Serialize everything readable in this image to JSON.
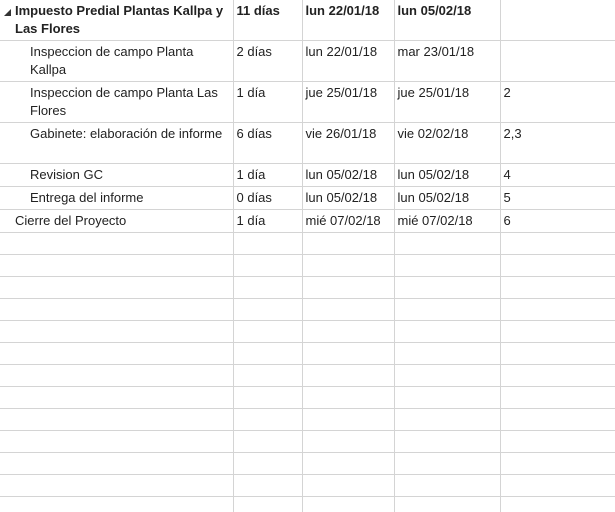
{
  "gantt_table": {
    "rows": [
      {
        "name": "Impuesto Predial Plantas Kallpa y Las Flores",
        "duration": "11 días",
        "start": "lun 22/01/18",
        "finish": "lun 05/02/18",
        "predecessors": "",
        "summary": true
      },
      {
        "name": "Inspeccion de campo Planta Kallpa",
        "duration": "2 días",
        "start": "lun 22/01/18",
        "finish": "mar 23/01/18",
        "predecessors": ""
      },
      {
        "name": "Inspeccion de campo Planta Las Flores",
        "duration": "1 día",
        "start": "jue 25/01/18",
        "finish": "jue 25/01/18",
        "predecessors": "2"
      },
      {
        "name": "Gabinete: elaboración de informe",
        "duration": "6 días",
        "start": "vie 26/01/18",
        "finish": "vie 02/02/18",
        "predecessors": "2,3"
      },
      {
        "name": "Revision GC",
        "duration": "1 día",
        "start": "lun 05/02/18",
        "finish": "lun 05/02/18",
        "predecessors": "4"
      },
      {
        "name": "Entrega del informe",
        "duration": "0 días",
        "start": "lun 05/02/18",
        "finish": "lun 05/02/18",
        "predecessors": "5"
      },
      {
        "name": "Cierre del Proyecto",
        "duration": "1 día",
        "start": "mié 07/02/18",
        "finish": "mié 07/02/18",
        "predecessors": "6"
      }
    ]
  },
  "icons": {
    "collapse": "collapse-triangle-icon"
  },
  "colors": {
    "gridline": "#d4d4d4",
    "text": "#222222"
  }
}
